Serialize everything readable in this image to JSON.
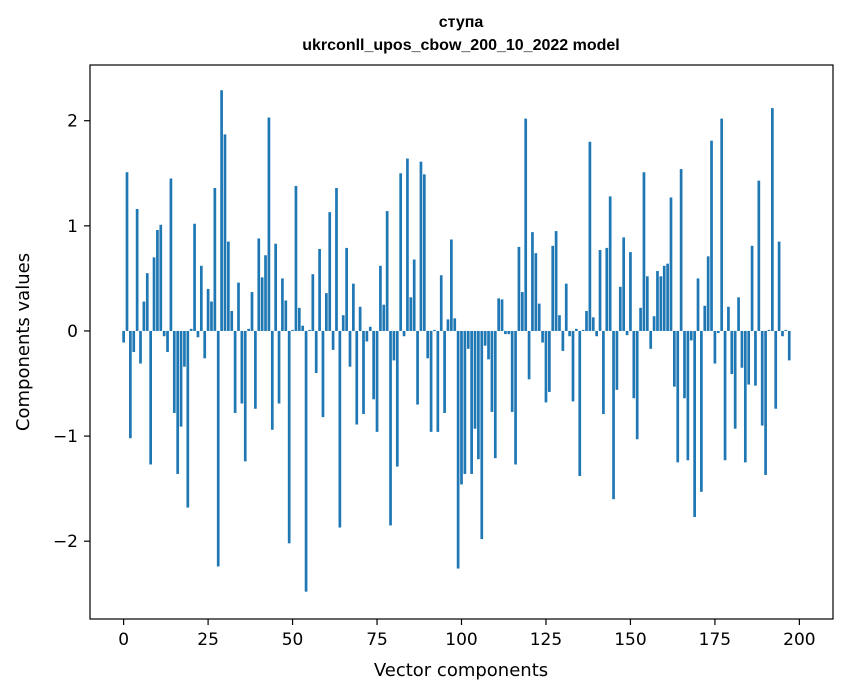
{
  "chart_data": {
    "type": "bar",
    "title": "ступа",
    "subtitle": "ukrconll_upos_cbow_200_10_2022 model",
    "xlabel": "Vector components",
    "ylabel": "Components values",
    "xlim": [
      -9.95,
      209.95
    ],
    "ylim": [
      -2.74,
      2.53
    ],
    "xticks": [
      0,
      25,
      50,
      75,
      100,
      125,
      150,
      175,
      200
    ],
    "xtick_labels": [
      "0",
      "25",
      "50",
      "75",
      "100",
      "125",
      "150",
      "175",
      "200"
    ],
    "yticks": [
      -2,
      -1,
      0,
      1,
      2
    ],
    "ytick_labels": [
      "−2",
      "−1",
      "0",
      "1",
      "2"
    ],
    "bar_color": "#1f77b4",
    "values": [
      -0.11,
      1.51,
      -1.02,
      -0.2,
      1.16,
      -0.31,
      0.28,
      0.55,
      -1.27,
      0.7,
      0.96,
      1.01,
      -0.05,
      -0.2,
      1.45,
      -0.78,
      -1.36,
      -0.91,
      -0.34,
      -1.68,
      0.02,
      1.02,
      -0.06,
      0.62,
      -0.26,
      0.4,
      0.28,
      1.36,
      -2.24,
      2.29,
      1.87,
      0.85,
      0.19,
      -0.78,
      0.46,
      -0.69,
      -1.24,
      0.02,
      0.37,
      -0.74,
      0.88,
      0.51,
      0.72,
      2.03,
      -0.94,
      0.83,
      -0.69,
      0.5,
      0.29,
      -2.02,
      0.01,
      1.38,
      0.22,
      0.05,
      -2.48,
      0.01,
      0.54,
      -0.4,
      0.78,
      -0.82,
      0.36,
      1.13,
      -0.18,
      1.36,
      -1.87,
      0.15,
      0.79,
      -0.34,
      0.45,
      -0.89,
      0.23,
      -0.79,
      -0.1,
      0.04,
      -0.65,
      -0.96,
      0.62,
      0.25,
      1.14,
      -1.85,
      -0.28,
      -1.29,
      1.5,
      -0.05,
      1.64,
      0.32,
      0.68,
      -0.7,
      1.61,
      1.49,
      -0.26,
      -0.96,
      0.01,
      -0.96,
      0.53,
      -0.78,
      0.11,
      0.87,
      0.12,
      -2.26,
      -1.46,
      -1.36,
      -0.17,
      -1.36,
      -0.93,
      -1.22,
      -1.98,
      -0.14,
      -0.27,
      -0.77,
      -1.21,
      0.31,
      0.3,
      -0.03,
      -0.03,
      -0.77,
      -1.27,
      0.8,
      0.37,
      2.02,
      -0.46,
      0.94,
      0.74,
      0.26,
      -0.11,
      -0.68,
      -0.58,
      0.81,
      0.95,
      0.15,
      -0.19,
      0.45,
      -0.05,
      -0.67,
      0.02,
      -1.38,
      0.01,
      0.19,
      1.8,
      0.13,
      -0.05,
      0.77,
      -0.79,
      0.79,
      1.28,
      -1.6,
      -0.56,
      0.42,
      0.89,
      -0.04,
      0.75,
      -0.64,
      -1.03,
      0.22,
      1.51,
      0.52,
      -0.17,
      0.14,
      0.57,
      0.52,
      0.62,
      0.64,
      1.27,
      -0.53,
      -1.25,
      1.54,
      -0.64,
      -1.23,
      -0.09,
      -1.77,
      0.5,
      -1.53,
      0.24,
      0.71,
      1.81,
      -0.31,
      -0.02,
      2.02,
      -1.23,
      0.23,
      -0.41,
      -0.93,
      0.32,
      -0.35,
      -1.25,
      -0.51,
      0.81,
      -0.52,
      1.43,
      -0.9,
      -1.37,
      0.01,
      2.12,
      -0.74,
      0.85,
      -0.05,
      0.01,
      -0.28
    ]
  }
}
